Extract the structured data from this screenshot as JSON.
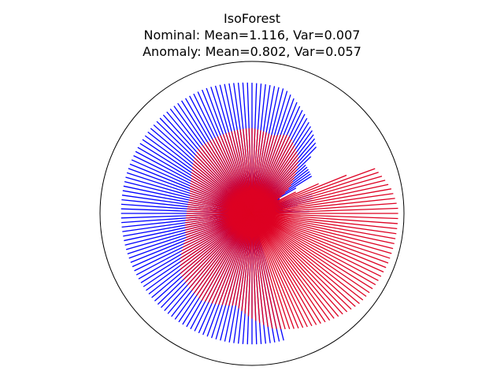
{
  "chart_data": {
    "type": "line",
    "projection": "polar",
    "title": "IsoForest",
    "subtitle_lines": [
      "Nominal: Mean=1.116, Var=0.007",
      "Anomaly: Mean=0.802, Var=0.057"
    ],
    "xlabel": "",
    "ylabel": "",
    "grid": false,
    "axis_visible": false,
    "angle_start_deg": 0,
    "angle_step_deg": 2,
    "angle_end_deg": 358,
    "rlim": [
      0,
      1.3
    ],
    "series": [
      {
        "key": "nominal",
        "color": "#0000ff",
        "radius_profile": [
          {
            "angle_deg": 0,
            "r": 0.0
          },
          {
            "angle_deg": 1,
            "r": 0.5
          },
          {
            "angle_deg": 3,
            "r": 0.48
          },
          {
            "angle_deg": 5,
            "r": 0.26
          },
          {
            "angle_deg": 7,
            "r": 0.27
          },
          {
            "angle_deg": 9,
            "r": 0.27
          },
          {
            "angle_deg": 11,
            "r": 0.52
          },
          {
            "angle_deg": 15,
            "r": 0.54
          },
          {
            "angle_deg": 19,
            "r": 0.54
          },
          {
            "angle_deg": 21,
            "r": 0.25
          },
          {
            "angle_deg": 29,
            "r": 0.27
          },
          {
            "angle_deg": 31,
            "r": 0.6
          },
          {
            "angle_deg": 43,
            "r": 0.62
          },
          {
            "angle_deg": 45,
            "r": 0.78
          },
          {
            "angle_deg": 75,
            "r": 1.1
          },
          {
            "angle_deg": 110,
            "r": 1.14
          },
          {
            "angle_deg": 180,
            "r": 1.12
          },
          {
            "angle_deg": 250,
            "r": 1.12
          },
          {
            "angle_deg": 285,
            "r": 1.12
          },
          {
            "angle_deg": 287,
            "r": 0.0
          }
        ]
      },
      {
        "key": "anomaly",
        "color": "#dd0022",
        "radius_profile": [
          {
            "angle_deg": 0,
            "r": 1.25
          },
          {
            "angle_deg": 2,
            "r": 1.25
          },
          {
            "angle_deg": 10,
            "r": 1.21
          },
          {
            "angle_deg": 20,
            "r": 1.12
          },
          {
            "angle_deg": 25,
            "r": 0.5
          },
          {
            "angle_deg": 28,
            "r": 0.25
          },
          {
            "angle_deg": 35,
            "r": 0.4
          },
          {
            "angle_deg": 50,
            "r": 0.62
          },
          {
            "angle_deg": 65,
            "r": 0.74
          },
          {
            "angle_deg": 75,
            "r": 0.69
          },
          {
            "angle_deg": 90,
            "r": 0.73
          },
          {
            "angle_deg": 110,
            "r": 0.72
          },
          {
            "angle_deg": 130,
            "r": 0.72
          },
          {
            "angle_deg": 150,
            "r": 0.6
          },
          {
            "angle_deg": 165,
            "r": 0.55
          },
          {
            "angle_deg": 180,
            "r": 0.56
          },
          {
            "angle_deg": 200,
            "r": 0.6
          },
          {
            "angle_deg": 220,
            "r": 0.8
          },
          {
            "angle_deg": 240,
            "r": 0.86
          },
          {
            "angle_deg": 260,
            "r": 0.8
          },
          {
            "angle_deg": 280,
            "r": 1.0
          },
          {
            "angle_deg": 300,
            "r": 1.1
          },
          {
            "angle_deg": 320,
            "r": 1.2
          },
          {
            "angle_deg": 340,
            "r": 1.24
          },
          {
            "angle_deg": 358,
            "r": 1.25
          }
        ]
      }
    ]
  }
}
